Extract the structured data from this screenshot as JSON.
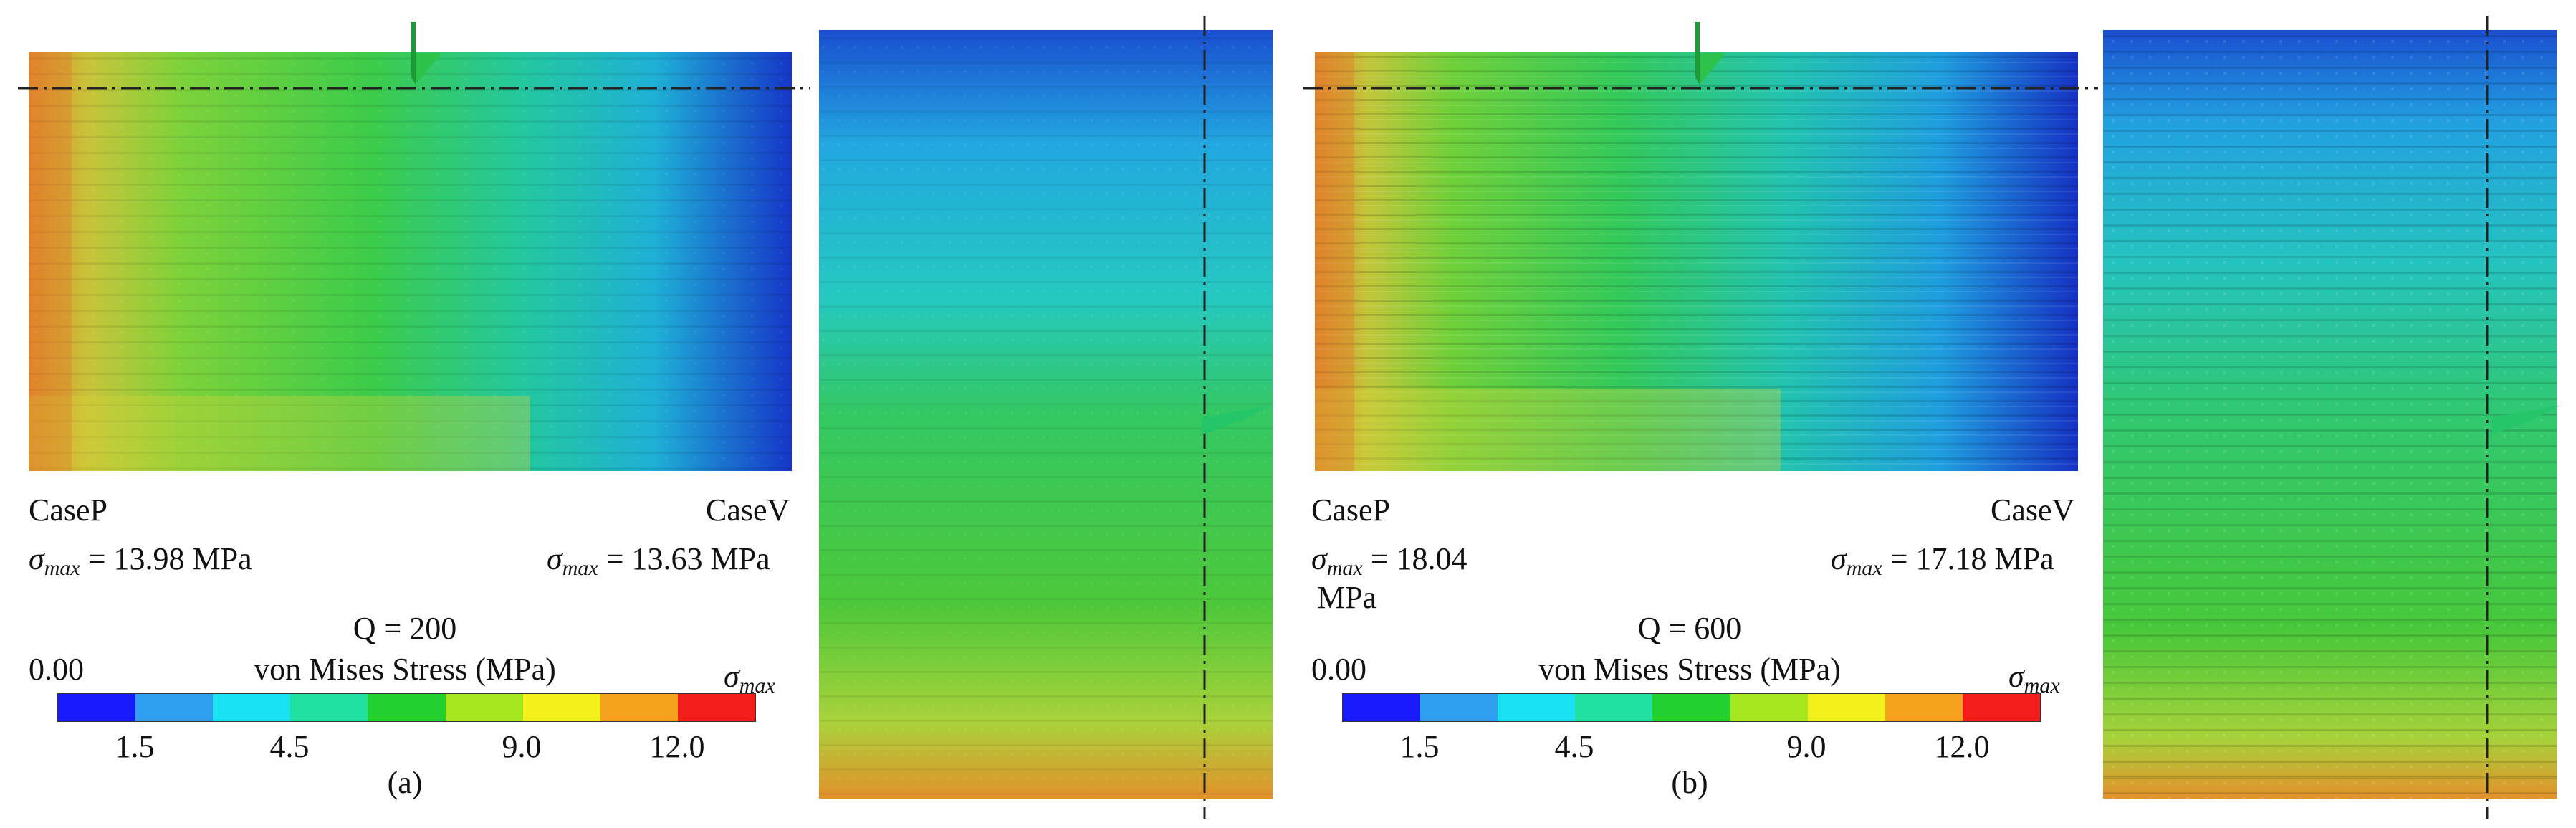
{
  "panels": [
    {
      "label": "(a)",
      "case_left": "CaseP",
      "case_right": "CaseV",
      "sigma_symbol": "σ",
      "sigma_sub": "max",
      "left_sigma_value": " = 13.98 MPa",
      "right_sigma_value": " = 13.63 MPa",
      "q_label": "Q = 200",
      "colorbar_title": "von Mises Stress (MPa)",
      "colorbar_min": "0.00",
      "colorbar_ticks": [
        "1.5",
        "4.5",
        "9.0",
        "12.0"
      ]
    },
    {
      "label": "(b)",
      "case_left": "CaseP",
      "case_right": "CaseV",
      "sigma_symbol": "σ",
      "sigma_sub": "max",
      "left_sigma_value": " = 18.04",
      "left_sigma_unit": "MPa",
      "right_sigma_value": " = 17.18 MPa",
      "q_label": "Q = 600",
      "colorbar_title": "von Mises Stress (MPa)",
      "colorbar_min": "0.00",
      "colorbar_ticks": [
        "1.5",
        "4.5",
        "9.0",
        "12.0"
      ]
    }
  ],
  "colorbar_colors": [
    "#1a1aff",
    "#2f9ff0",
    "#19e3f2",
    "#1fe0a0",
    "#22d030",
    "#a6e61c",
    "#f4f01a",
    "#f5a21d",
    "#f51c1c"
  ]
}
